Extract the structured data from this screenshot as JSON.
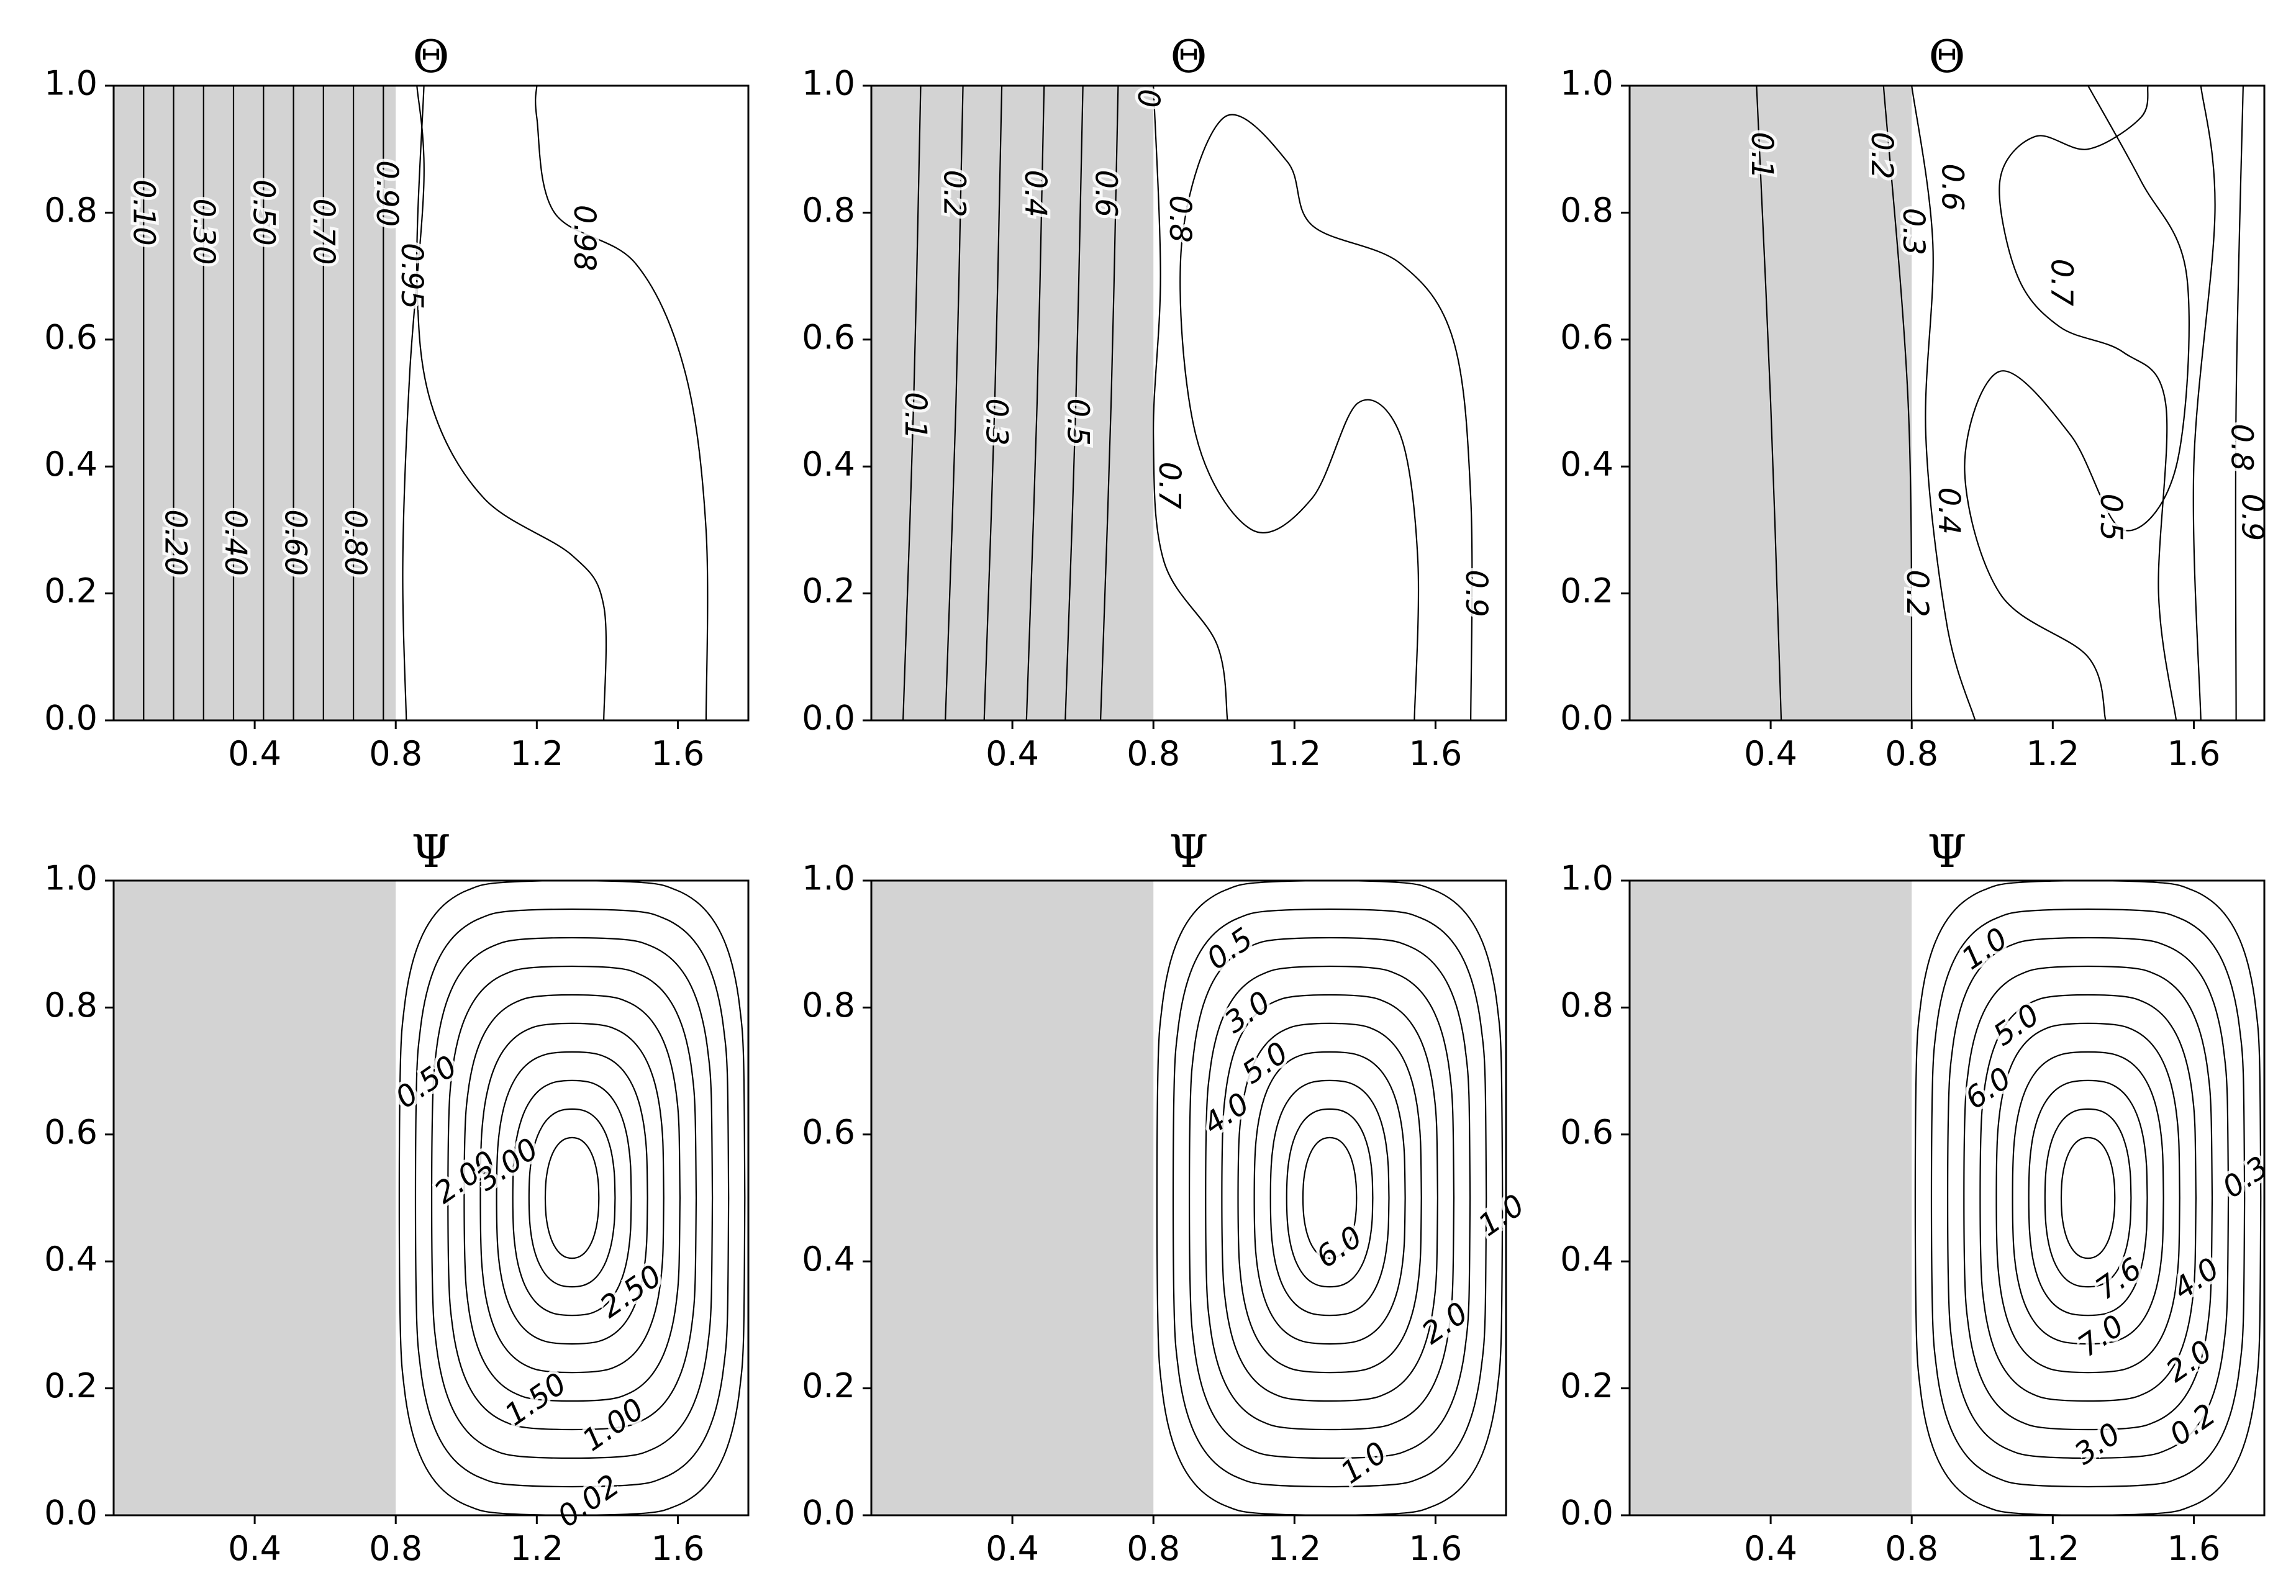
{
  "chart_data": [
    {
      "type": "contour",
      "title": "Θ",
      "field": "temperature",
      "solid_region": {
        "x": [
          0,
          0.8
        ],
        "color": "#d3d3d3"
      },
      "xlim": [
        0,
        1.8
      ],
      "ylim": [
        0,
        1.0
      ],
      "xticks": [
        0.4,
        0.8,
        1.2,
        1.6
      ],
      "xtick_labels": [
        "0.4",
        "0.8",
        "1.2",
        "1.6"
      ],
      "yticks": [
        0.0,
        0.2,
        0.4,
        0.6,
        0.8,
        1.0
      ],
      "ytick_labels": [
        "0.0",
        "0.2",
        "0.4",
        "0.6",
        "0.8",
        "1.0"
      ],
      "contour_labels": [
        {
          "text": "0.10",
          "x": 0.08,
          "y": 0.8
        },
        {
          "text": "0.20",
          "x": 0.17,
          "y": 0.28
        },
        {
          "text": "0.30",
          "x": 0.25,
          "y": 0.77
        },
        {
          "text": "0.40",
          "x": 0.34,
          "y": 0.28
        },
        {
          "text": "0.50",
          "x": 0.42,
          "y": 0.8
        },
        {
          "text": "0.60",
          "x": 0.51,
          "y": 0.28
        },
        {
          "text": "0.70",
          "x": 0.59,
          "y": 0.77
        },
        {
          "text": "0.80",
          "x": 0.68,
          "y": 0.28
        },
        {
          "text": "0.90",
          "x": 0.77,
          "y": 0.83
        },
        {
          "text": "0.95",
          "x": 0.84,
          "y": 0.7
        },
        {
          "text": "0.98",
          "x": 1.33,
          "y": 0.76
        }
      ]
    },
    {
      "type": "contour",
      "title": "Θ",
      "field": "temperature",
      "solid_region": {
        "x": [
          0,
          0.8
        ],
        "color": "#d3d3d3"
      },
      "xlim": [
        0,
        1.8
      ],
      "ylim": [
        0,
        1.0
      ],
      "xticks": [
        0.4,
        0.8,
        1.2,
        1.6
      ],
      "xtick_labels": [
        "0.4",
        "0.8",
        "1.2",
        "1.6"
      ],
      "yticks": [
        0.0,
        0.2,
        0.4,
        0.6,
        0.8,
        1.0
      ],
      "ytick_labels": [
        "0.0",
        "0.2",
        "0.4",
        "0.6",
        "0.8",
        "1.0"
      ],
      "contour_labels": [
        {
          "text": "0.1",
          "x": 0.12,
          "y": 0.48
        },
        {
          "text": "0.2",
          "x": 0.23,
          "y": 0.83
        },
        {
          "text": "0.3",
          "x": 0.35,
          "y": 0.47
        },
        {
          "text": "0.4",
          "x": 0.46,
          "y": 0.83
        },
        {
          "text": "0.5",
          "x": 0.58,
          "y": 0.47
        },
        {
          "text": "0.6",
          "x": 0.66,
          "y": 0.83
        },
        {
          "text": "0",
          "x": 0.78,
          "y": 0.98
        },
        {
          "text": "0.8",
          "x": 0.87,
          "y": 0.79
        },
        {
          "text": "0.7",
          "x": 0.84,
          "y": 0.37
        },
        {
          "text": "0.9",
          "x": 1.71,
          "y": 0.2
        }
      ]
    },
    {
      "type": "contour",
      "title": "Θ",
      "field": "temperature",
      "solid_region": {
        "x": [
          0,
          0.8
        ],
        "color": "#d3d3d3"
      },
      "xlim": [
        0,
        1.8
      ],
      "ylim": [
        0,
        1.0
      ],
      "xticks": [
        0.4,
        0.8,
        1.2,
        1.6
      ],
      "xtick_labels": [
        "0.4",
        "0.8",
        "1.2",
        "1.6"
      ],
      "yticks": [
        0.0,
        0.2,
        0.4,
        0.6,
        0.8,
        1.0
      ],
      "ytick_labels": [
        "0.0",
        "0.2",
        "0.4",
        "0.6",
        "0.8",
        "1.0"
      ],
      "contour_labels": [
        {
          "text": "0.1",
          "x": 0.37,
          "y": 0.89
        },
        {
          "text": "0.2",
          "x": 0.71,
          "y": 0.89
        },
        {
          "text": "0.3",
          "x": 0.8,
          "y": 0.77
        },
        {
          "text": "0.6",
          "x": 0.91,
          "y": 0.84
        },
        {
          "text": "0.7",
          "x": 1.22,
          "y": 0.69
        },
        {
          "text": "0.4",
          "x": 0.9,
          "y": 0.33
        },
        {
          "text": "0.5",
          "x": 1.36,
          "y": 0.32
        },
        {
          "text": "0.2",
          "x": 0.81,
          "y": 0.2
        },
        {
          "text": "0.8",
          "x": 1.73,
          "y": 0.43
        },
        {
          "text": "0.9",
          "x": 1.76,
          "y": 0.32
        }
      ]
    },
    {
      "type": "contour",
      "title": "Ψ",
      "field": "stream_function",
      "solid_region": {
        "x": [
          0,
          0.8
        ],
        "color": "#d3d3d3"
      },
      "xlim": [
        0,
        1.8
      ],
      "ylim": [
        0,
        1.0
      ],
      "xticks": [
        0.4,
        0.8,
        1.2,
        1.6
      ],
      "xtick_labels": [
        "0.4",
        "0.8",
        "1.2",
        "1.6"
      ],
      "yticks": [
        0.0,
        0.2,
        0.4,
        0.6,
        0.8,
        1.0
      ],
      "ytick_labels": [
        "0.0",
        "0.2",
        "0.4",
        "0.6",
        "0.8",
        "1.0"
      ],
      "center": [
        1.3,
        0.5
      ],
      "contour_labels": [
        {
          "text": "0.50",
          "x": 0.89,
          "y": 0.68
        },
        {
          "text": "2.00",
          "x": 1.0,
          "y": 0.53
        },
        {
          "text": "3.00",
          "x": 1.12,
          "y": 0.55
        },
        {
          "text": "2.50",
          "x": 1.47,
          "y": 0.35
        },
        {
          "text": "1.50",
          "x": 1.2,
          "y": 0.18
        },
        {
          "text": "1.00",
          "x": 1.42,
          "y": 0.14
        },
        {
          "text": "0.02",
          "x": 1.35,
          "y": 0.02
        }
      ]
    },
    {
      "type": "contour",
      "title": "Ψ",
      "field": "stream_function",
      "solid_region": {
        "x": [
          0,
          0.8
        ],
        "color": "#d3d3d3"
      },
      "xlim": [
        0,
        1.8
      ],
      "ylim": [
        0,
        1.0
      ],
      "xticks": [
        0.4,
        0.8,
        1.2,
        1.6
      ],
      "xtick_labels": [
        "0.4",
        "0.8",
        "1.2",
        "1.6"
      ],
      "yticks": [
        0.0,
        0.2,
        0.4,
        0.6,
        0.8,
        1.0
      ],
      "ytick_labels": [
        "0.0",
        "0.2",
        "0.4",
        "0.6",
        "0.8",
        "1.0"
      ],
      "center": [
        1.3,
        0.5
      ],
      "contour_labels": [
        {
          "text": "0.5",
          "x": 1.02,
          "y": 0.89
        },
        {
          "text": "3.0",
          "x": 1.07,
          "y": 0.79
        },
        {
          "text": "5.0",
          "x": 1.12,
          "y": 0.71
        },
        {
          "text": "4.0",
          "x": 1.01,
          "y": 0.63
        },
        {
          "text": "6.0",
          "x": 1.33,
          "y": 0.42
        },
        {
          "text": "2.0",
          "x": 1.63,
          "y": 0.3
        },
        {
          "text": "1.0",
          "x": 1.4,
          "y": 0.08
        },
        {
          "text": "1.0",
          "x": 1.79,
          "y": 0.47
        }
      ]
    },
    {
      "type": "contour",
      "title": "Ψ",
      "field": "stream_function",
      "solid_region": {
        "x": [
          0,
          0.8
        ],
        "color": "#d3d3d3"
      },
      "xlim": [
        0,
        1.8
      ],
      "ylim": [
        0,
        1.0
      ],
      "xticks": [
        0.4,
        0.8,
        1.2,
        1.6
      ],
      "xtick_labels": [
        "0.4",
        "0.8",
        "1.2",
        "1.6"
      ],
      "yticks": [
        0.0,
        0.2,
        0.4,
        0.6,
        0.8,
        1.0
      ],
      "ytick_labels": [
        "0.0",
        "0.2",
        "0.4",
        "0.6",
        "0.8",
        "1.0"
      ],
      "center": [
        1.3,
        0.5
      ],
      "contour_labels": [
        {
          "text": "1.0",
          "x": 1.01,
          "y": 0.89
        },
        {
          "text": "5.0",
          "x": 1.1,
          "y": 0.77
        },
        {
          "text": "6.0",
          "x": 1.02,
          "y": 0.67
        },
        {
          "text": "7.6",
          "x": 1.39,
          "y": 0.37
        },
        {
          "text": "7.0",
          "x": 1.34,
          "y": 0.28
        },
        {
          "text": "4.0",
          "x": 1.61,
          "y": 0.37
        },
        {
          "text": "2.0",
          "x": 1.59,
          "y": 0.24
        },
        {
          "text": "0.2",
          "x": 1.6,
          "y": 0.14
        },
        {
          "text": "3.0",
          "x": 1.33,
          "y": 0.11
        },
        {
          "text": "0.3",
          "x": 1.75,
          "y": 0.53
        }
      ]
    }
  ]
}
